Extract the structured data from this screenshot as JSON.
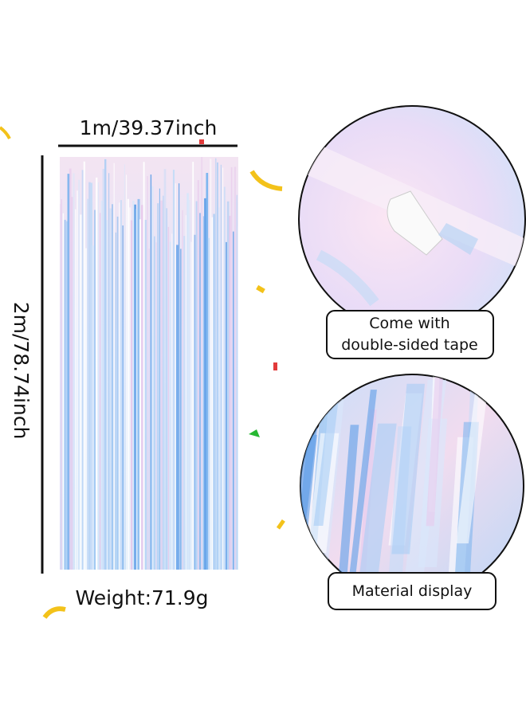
{
  "dimensions": {
    "width": "1m/39.37inch",
    "height": "2m/78.74inch",
    "weight": "Weight:71.9g"
  },
  "callouts": [
    {
      "lines": [
        "Come with",
        "double-sided tape"
      ]
    },
    {
      "lines": [
        "Material display"
      ]
    }
  ]
}
